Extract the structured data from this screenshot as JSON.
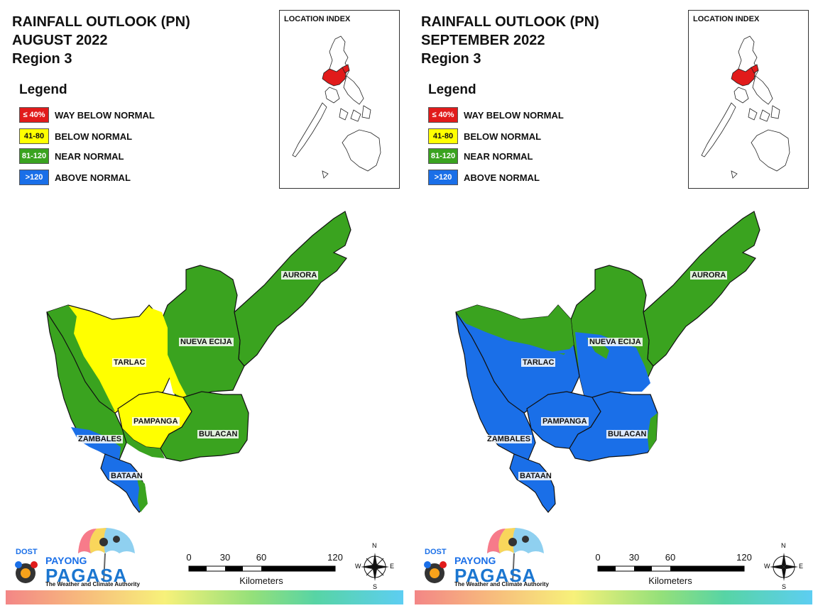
{
  "panels": [
    {
      "title_line1": "RAINFALL OUTLOOK (PN)",
      "title_line2": "AUGUST 2022",
      "title_line3": "Region 3",
      "legend_title": "Legend",
      "legend": [
        {
          "swatch": "≤ 40%",
          "label": "WAY BELOW NORMAL",
          "color": "#e11b1b"
        },
        {
          "swatch": "41-80",
          "label": "BELOW NORMAL",
          "color": "#ffff00"
        },
        {
          "swatch": "81-120",
          "label": "NEAR NORMAL",
          "color": "#3aa31f"
        },
        {
          "swatch": ">120",
          "label": "ABOVE NORMAL",
          "color": "#1a6fe8"
        }
      ],
      "location_index_title": "LOCATION INDEX",
      "provinces": [
        "AURORA",
        "NUEVA ECIJA",
        "TARLAC",
        "PAMPANGA",
        "BULACAN",
        "ZAMBALES",
        "BATAAN"
      ],
      "scale": {
        "ticks": [
          "0",
          "30",
          "60",
          "120"
        ],
        "unit": "Kilometers"
      },
      "compass": {
        "n": "N",
        "s": "S",
        "e": "E",
        "w": "W"
      },
      "logo": {
        "dost": "DOST",
        "payong": "PAYONG",
        "pagasa": "PAGASA",
        "tagline": "The Weather and Climate Authority"
      }
    },
    {
      "title_line1": "RAINFALL OUTLOOK (PN)",
      "title_line2": "SEPTEMBER 2022",
      "title_line3": "Region 3",
      "legend_title": "Legend",
      "legend": [
        {
          "swatch": "≤ 40%",
          "label": "WAY BELOW NORMAL",
          "color": "#e11b1b"
        },
        {
          "swatch": "41-80",
          "label": "BELOW NORMAL",
          "color": "#ffff00"
        },
        {
          "swatch": "81-120",
          "label": "NEAR NORMAL",
          "color": "#3aa31f"
        },
        {
          "swatch": ">120",
          "label": "ABOVE NORMAL",
          "color": "#1a6fe8"
        }
      ],
      "location_index_title": "LOCATION INDEX",
      "provinces": [
        "AURORA",
        "NUEVA ECIJA",
        "TARLAC",
        "PAMPANGA",
        "BULACAN",
        "ZAMBALES",
        "BATAAN"
      ],
      "scale": {
        "ticks": [
          "0",
          "30",
          "60",
          "120"
        ],
        "unit": "Kilometers"
      },
      "compass": {
        "n": "N",
        "s": "S",
        "e": "E",
        "w": "W"
      },
      "logo": {
        "dost": "DOST",
        "payong": "PAYONG",
        "pagasa": "PAGASA",
        "tagline": "The Weather and Climate Authority"
      }
    }
  ],
  "colors": {
    "way_below": "#e11b1b",
    "below": "#ffff00",
    "near": "#3aa31f",
    "above": "#1a6fe8",
    "region_highlight": "#e11b1b"
  }
}
